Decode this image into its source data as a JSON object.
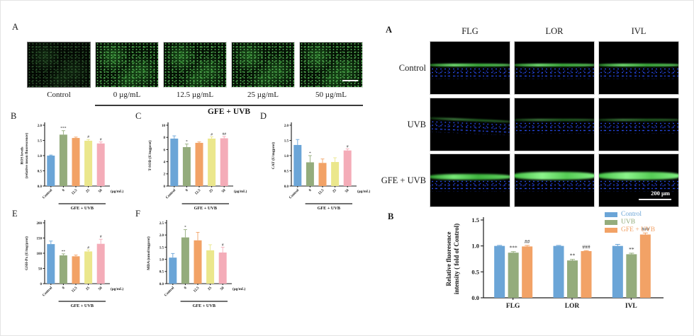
{
  "palette": {
    "blue": "#6BA5D7",
    "green": "#94AC7C",
    "orange": "#F2A266",
    "yellow": "#EBE78C",
    "pink": "#F4ACB8",
    "fluor_green": "#3cb43c",
    "dapi_blue": "#2a50e8",
    "axis": "#1a1a1a"
  },
  "left": {
    "panel_a_label": "A",
    "micrographs": [
      "Control",
      "0 µg/mL",
      "12.5 µg/mL",
      "25 µg/mL",
      "50 µg/mL"
    ],
    "group_label": "GFE + UVB"
  },
  "right": {
    "panel_a_label": "A",
    "columns": [
      "FLG",
      "LOR",
      "IVL"
    ],
    "rows": [
      "Control",
      "UVB",
      "GFE + UVB"
    ],
    "scale_bar": "200 µm"
  },
  "chart_data": [
    {
      "panel": "B",
      "type": "bar",
      "categories": [
        "Control",
        "0",
        "12.5",
        "25",
        "50"
      ],
      "values": [
        1.0,
        1.69,
        1.58,
        1.49,
        1.4
      ],
      "errors": [
        0.02,
        0.13,
        0.03,
        0.04,
        0.05
      ],
      "annotations": [
        "",
        "***",
        "",
        "#",
        "#"
      ],
      "colors": [
        "blue",
        "green",
        "orange",
        "yellow",
        "pink"
      ],
      "ylabel_lines": [
        "ROS levels",
        "(relative mean fluorescence)"
      ],
      "ylim": [
        0,
        2
      ],
      "ytick_values": [
        0,
        0.5,
        1,
        1.5,
        2
      ],
      "yticks": [
        "0.0",
        "0.5",
        "1.0",
        "1.5",
        "2.0"
      ],
      "x_unit": "(µg/mL)",
      "group_label": "GFE + UVB",
      "group_span": [
        1,
        4
      ]
    },
    {
      "panel": "C",
      "type": "bar",
      "categories": [
        "Control",
        "0",
        "12.5",
        "25",
        "50"
      ],
      "values": [
        7.8,
        6.4,
        7.1,
        7.8,
        7.85
      ],
      "errors": [
        0.45,
        0.5,
        0.15,
        0.3,
        0.3
      ],
      "annotations": [
        "",
        "*",
        "",
        "#",
        "##"
      ],
      "colors": [
        "blue",
        "green",
        "orange",
        "yellow",
        "pink"
      ],
      "ylabel_lines": [
        "T-SOD (U/mgprot)"
      ],
      "ylim": [
        0,
        10
      ],
      "ytick_values": [
        0,
        2,
        4,
        6,
        8,
        10
      ],
      "yticks": [
        "0",
        "2",
        "4",
        "6",
        "8",
        "10"
      ],
      "x_unit": "(µg/mL)",
      "group_label": "GFE + UVB",
      "group_span": [
        1,
        4
      ]
    },
    {
      "panel": "D",
      "type": "bar",
      "categories": [
        "Control",
        "0",
        "12.5",
        "25",
        "50"
      ],
      "values": [
        1.35,
        0.78,
        0.76,
        0.79,
        1.17
      ],
      "errors": [
        0.18,
        0.22,
        0.13,
        0.14,
        0.05
      ],
      "annotations": [
        "",
        "*",
        "",
        "",
        "#"
      ],
      "colors": [
        "blue",
        "green",
        "orange",
        "yellow",
        "pink"
      ],
      "ylabel_lines": [
        "CAT (U/mgprot)"
      ],
      "ylim": [
        0,
        2
      ],
      "ytick_values": [
        0,
        0.5,
        1,
        1.5,
        2
      ],
      "yticks": [
        "0.0",
        "0.5",
        "1.0",
        "1.5",
        "2.0"
      ],
      "x_unit": "(µg/mL)",
      "group_label": "GFE + UVB",
      "group_span": [
        1,
        4
      ]
    },
    {
      "panel": "E",
      "type": "bar",
      "categories": [
        "Control",
        "0",
        "12.5",
        "25",
        "50"
      ],
      "values": [
        130,
        93,
        90,
        106,
        131
      ],
      "errors": [
        10,
        5,
        4,
        5,
        15
      ],
      "annotations": [
        "",
        "**",
        "",
        "#",
        "#"
      ],
      "colors": [
        "blue",
        "green",
        "orange",
        "yellow",
        "pink"
      ],
      "ylabel_lines": [
        "GSH-Px (U/mg/prot)"
      ],
      "ylim": [
        0,
        200
      ],
      "ytick_values": [
        0,
        50,
        100,
        150,
        200
      ],
      "yticks": [
        "0",
        "50",
        "100",
        "150",
        "200"
      ],
      "x_unit": "(µg/mL)",
      "group_label": "GFE + UVB",
      "group_span": [
        1,
        4
      ]
    },
    {
      "panel": "F",
      "type": "bar",
      "categories": [
        "Control",
        "0",
        "12.5",
        "25",
        "50"
      ],
      "values": [
        1.07,
        1.9,
        1.78,
        1.37,
        1.28
      ],
      "errors": [
        0.17,
        0.32,
        0.33,
        0.23,
        0.22
      ],
      "annotations": [
        "",
        "*",
        "",
        "",
        "#"
      ],
      "colors": [
        "blue",
        "green",
        "orange",
        "yellow",
        "pink"
      ],
      "ylabel_lines": [
        "MDA (nmol/mgprot)"
      ],
      "ylim": [
        0,
        2.5
      ],
      "ytick_values": [
        0,
        0.5,
        1,
        1.5,
        2,
        2.5
      ],
      "yticks": [
        "0.0",
        "0.5",
        "1.0",
        "1.5",
        "2.0",
        "2.5"
      ],
      "x_unit": "(µg/mL)",
      "group_label": "GFE + UVB",
      "group_span": [
        1,
        4
      ]
    },
    {
      "panel": "B",
      "type": "grouped_bar",
      "categories": [
        "FLG",
        "LOR",
        "IVL"
      ],
      "series": [
        {
          "name": "Control",
          "color": "blue",
          "values": [
            1.0,
            1.0,
            1.0
          ],
          "errors": [
            0.01,
            0.01,
            0.03
          ],
          "annotations": [
            "",
            "",
            ""
          ]
        },
        {
          "name": "UVB",
          "color": "green",
          "values": [
            0.87,
            0.72,
            0.84
          ],
          "errors": [
            0.02,
            0.02,
            0.02
          ],
          "annotations": [
            "***",
            "**",
            "**"
          ]
        },
        {
          "name": "GFE + UVB",
          "color": "orange",
          "values": [
            0.99,
            0.9,
            1.22
          ],
          "errors": [
            0.02,
            0.01,
            0.03
          ],
          "annotations": [
            "##",
            "###",
            "###"
          ]
        }
      ],
      "ylabel_lines": [
        "Relative fluoresence",
        "intensity ( fold of Control)"
      ],
      "ylim": [
        0,
        1.5
      ],
      "ytick_values": [
        0,
        0.5,
        1,
        1.5
      ],
      "yticks": [
        "0.0",
        "0.5",
        "1.0",
        "1.5"
      ],
      "legend_position": "top-right"
    }
  ]
}
